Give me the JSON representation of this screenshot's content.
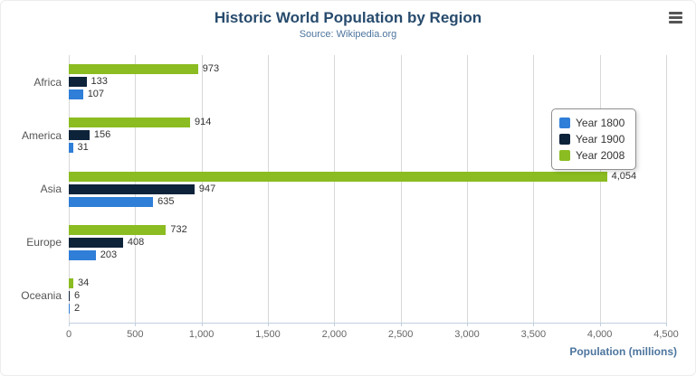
{
  "chart_data": {
    "type": "bar",
    "orientation": "horizontal",
    "title": "Historic World Population by Region",
    "subtitle": "Source: Wikipedia.org",
    "categories": [
      "Africa",
      "America",
      "Asia",
      "Europe",
      "Oceania"
    ],
    "series": [
      {
        "name": "Year 1800",
        "color": "#2f7ed8",
        "values": [
          107,
          31,
          635,
          203,
          2
        ]
      },
      {
        "name": "Year 1900",
        "color": "#0d233a",
        "values": [
          133,
          156,
          947,
          408,
          6
        ]
      },
      {
        "name": "Year 2008",
        "color": "#8bbc21",
        "values": [
          973,
          914,
          4054,
          732,
          34
        ]
      }
    ],
    "xlabel": "Population (millions)",
    "xlim": [
      0,
      4500
    ],
    "xticks": [
      0,
      500,
      1000,
      1500,
      2000,
      2500,
      3000,
      3500,
      4000,
      4500
    ],
    "grid": true,
    "legend_position": "right"
  },
  "icons": {
    "export_menu": "hamburger-icon"
  },
  "colors": {
    "title": "#274b6d",
    "subtitle": "#4d759e",
    "axis_title": "#4d759e",
    "gridline": "#d8d8d8",
    "axis_line": "#c0d0e0"
  }
}
